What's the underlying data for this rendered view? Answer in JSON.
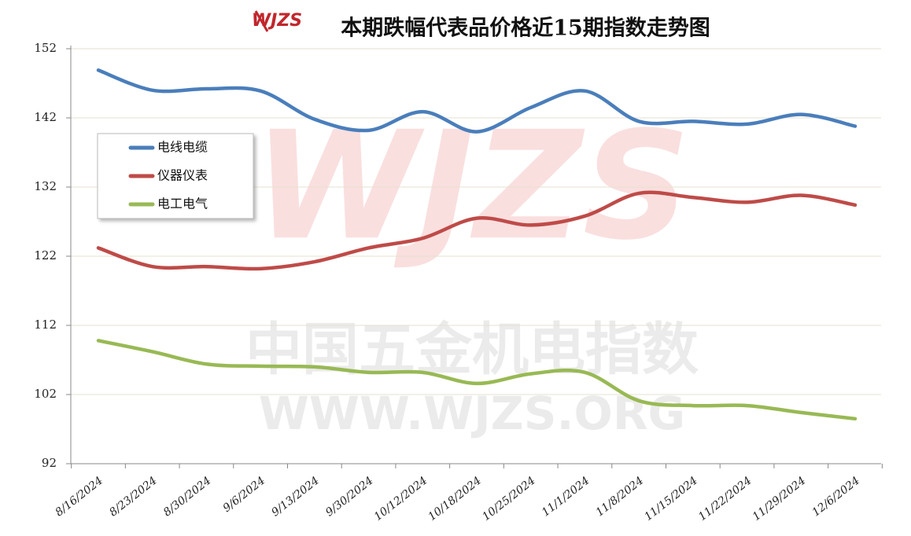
{
  "chart_data": {
    "type": "line",
    "title": "本期跌幅代表品价格近15期指数走势图",
    "watermark": [
      "中国五金机电指数",
      "WWW.WJZS.ORG"
    ],
    "categories": [
      "8/16/2024",
      "8/23/2024",
      "8/30/2024",
      "9/6/2024",
      "9/13/2024",
      "9/30/2024",
      "10/12/2024",
      "10/18/2024",
      "10/25/2024",
      "11/1/2024",
      "11/8/2024",
      "11/15/2024",
      "11/22/2024",
      "11/29/2024",
      "12/6/2024"
    ],
    "series": [
      {
        "name": "电线电缆",
        "color": "#4a7ebb",
        "values": [
          148.9,
          146.0,
          146.2,
          145.9,
          141.8,
          140.2,
          142.9,
          140.0,
          143.5,
          145.9,
          141.5,
          141.5,
          141.1,
          142.5,
          140.8
        ]
      },
      {
        "name": "仪器仪表",
        "color": "#be4b48",
        "values": [
          123.2,
          120.5,
          120.5,
          120.2,
          121.2,
          123.2,
          124.6,
          127.5,
          126.5,
          127.8,
          131.1,
          130.5,
          129.8,
          130.8,
          129.4
        ]
      },
      {
        "name": "电工电气",
        "color": "#98b954",
        "values": [
          109.8,
          108.2,
          106.4,
          106.1,
          106.0,
          105.2,
          105.2,
          103.6,
          105.0,
          105.2,
          101.1,
          100.4,
          100.4,
          99.4,
          98.5
        ]
      }
    ],
    "ylim": [
      92,
      152
    ],
    "yticks": [
      92,
      102,
      112,
      122,
      132,
      142,
      152
    ],
    "grid": true,
    "legend": "upper left"
  }
}
